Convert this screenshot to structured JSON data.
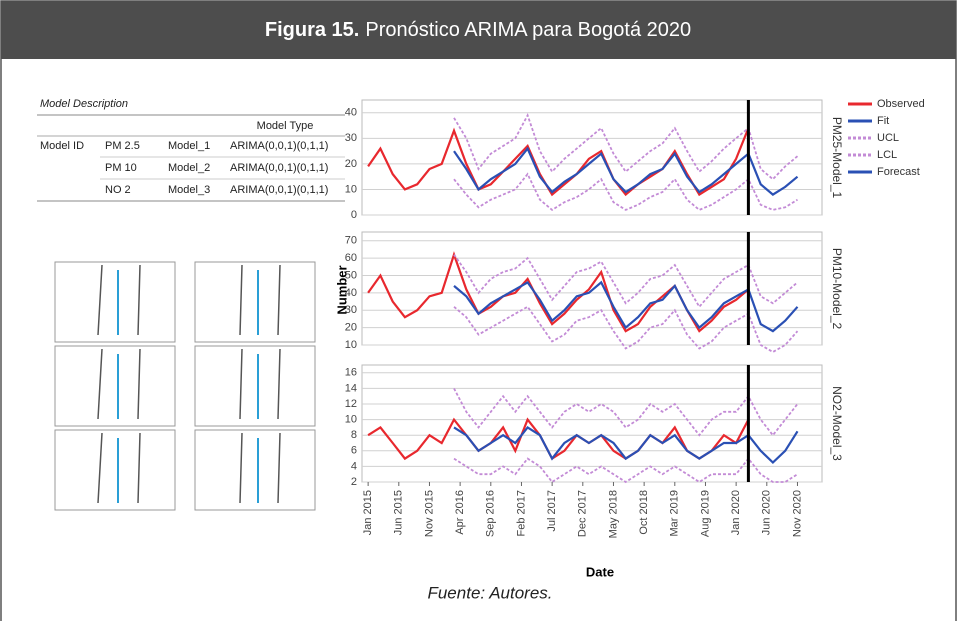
{
  "header": {
    "label": "Figura 15.",
    "title": "Pronóstico ARIMA para Bogotá 2020"
  },
  "caption": "Fuente: Autores.",
  "table": {
    "title": "Model Description",
    "column_header": "Model Type",
    "row_header": "Model ID",
    "rows": [
      [
        "PM 2.5",
        "Model_1",
        "ARIMA(0,0,1)(0,1,1)"
      ],
      [
        "PM 10",
        "Model_2",
        "ARIMA(0,0,1)(0,1,1)"
      ],
      [
        "NO 2",
        "Model_3",
        "ARIMA(0,0,1)(0,1,1)"
      ]
    ]
  },
  "chart_data": [
    {
      "type": "line",
      "panel_label": "PM25-Model_1",
      "legend": "right",
      "x": [
        "Jan 2015",
        "Mar 2015",
        "May 2015",
        "Jul 2015",
        "Sep 2015",
        "Nov 2015",
        "Jan 2016",
        "Mar 2016",
        "May 2016",
        "Jul 2016",
        "Sep 2016",
        "Nov 2016",
        "Jan 2017",
        "Mar 2017",
        "May 2017",
        "Jul 2017",
        "Sep 2017",
        "Nov 2017",
        "Jan 2018",
        "Mar 2018",
        "May 2018",
        "Jul 2018",
        "Sep 2018",
        "Nov 2018",
        "Jan 2019",
        "Mar 2019",
        "May 2019",
        "Jul 2019",
        "Sep 2019",
        "Nov 2019",
        "Jan 2020",
        "Mar 2020",
        "May 2020",
        "Jul 2020",
        "Sep 2020",
        "Nov 2020"
      ],
      "xlim": [
        "Dec 2014",
        "Mar 2021"
      ],
      "divider_x": "Mar 2020",
      "ylim": [
        0,
        45
      ],
      "yticks": [
        0,
        10,
        20,
        30,
        40
      ],
      "grid": true,
      "series": [
        {
          "name": "Observed",
          "color": "#e8282e",
          "style": "solid",
          "values": [
            19,
            26,
            16,
            10,
            12,
            18,
            20,
            33,
            20,
            10,
            12,
            17,
            22,
            27,
            16,
            8,
            12,
            16,
            22,
            25,
            14,
            8,
            12,
            15,
            18,
            25,
            16,
            8,
            11,
            14,
            22,
            34,
            null,
            null,
            null,
            null
          ]
        },
        {
          "name": "Fit",
          "color": "#2a50b4",
          "style": "solid",
          "values": [
            null,
            null,
            null,
            null,
            null,
            null,
            null,
            25,
            18,
            10,
            14,
            17,
            20,
            26,
            15,
            9,
            13,
            16,
            20,
            24,
            14,
            9,
            12,
            16,
            18,
            24,
            15,
            9,
            12,
            16,
            20,
            24,
            null,
            null,
            null,
            null
          ]
        },
        {
          "name": "UCL",
          "color": "#c38bd6",
          "style": "dotted",
          "values": [
            null,
            null,
            null,
            null,
            null,
            null,
            null,
            38,
            30,
            18,
            24,
            27,
            30,
            39,
            25,
            17,
            22,
            26,
            30,
            34,
            24,
            17,
            21,
            25,
            28,
            34,
            25,
            17,
            21,
            26,
            30,
            34,
            18,
            14,
            19,
            23
          ]
        },
        {
          "name": "LCL",
          "color": "#c38bd6",
          "style": "dotted",
          "values": [
            null,
            null,
            null,
            null,
            null,
            null,
            null,
            14,
            8,
            3,
            6,
            8,
            10,
            16,
            6,
            2,
            5,
            7,
            10,
            14,
            5,
            2,
            4,
            7,
            9,
            14,
            6,
            2,
            4,
            7,
            10,
            14,
            4,
            2,
            3,
            6
          ]
        },
        {
          "name": "Forecast",
          "color": "#2a50b4",
          "style": "solid",
          "values": [
            null,
            null,
            null,
            null,
            null,
            null,
            null,
            null,
            null,
            null,
            null,
            null,
            null,
            null,
            null,
            null,
            null,
            null,
            null,
            null,
            null,
            null,
            null,
            null,
            null,
            null,
            null,
            null,
            null,
            null,
            null,
            24,
            12,
            8,
            11,
            15
          ]
        }
      ]
    },
    {
      "type": "line",
      "panel_label": "PM10-Model_2",
      "ylabel": "Number",
      "x": [
        "Jan 2015",
        "Mar 2015",
        "May 2015",
        "Jul 2015",
        "Sep 2015",
        "Nov 2015",
        "Jan 2016",
        "Mar 2016",
        "May 2016",
        "Jul 2016",
        "Sep 2016",
        "Nov 2016",
        "Jan 2017",
        "Mar 2017",
        "May 2017",
        "Jul 2017",
        "Sep 2017",
        "Nov 2017",
        "Jan 2018",
        "Mar 2018",
        "May 2018",
        "Jul 2018",
        "Sep 2018",
        "Nov 2018",
        "Jan 2019",
        "Mar 2019",
        "May 2019",
        "Jul 2019",
        "Sep 2019",
        "Nov 2019",
        "Jan 2020",
        "Mar 2020",
        "May 2020",
        "Jul 2020",
        "Sep 2020",
        "Nov 2020"
      ],
      "xlim": [
        "Dec 2014",
        "Mar 2021"
      ],
      "divider_x": "Mar 2020",
      "ylim": [
        10,
        75
      ],
      "yticks": [
        10,
        20,
        30,
        40,
        50,
        60,
        70
      ],
      "grid": true,
      "series": [
        {
          "color": "#e8282e",
          "style": "solid",
          "values": [
            40,
            50,
            35,
            26,
            30,
            38,
            40,
            62,
            42,
            28,
            32,
            38,
            40,
            48,
            34,
            22,
            28,
            36,
            42,
            52,
            30,
            18,
            22,
            32,
            38,
            44,
            30,
            18,
            24,
            32,
            36,
            42,
            null,
            null,
            null,
            null
          ]
        },
        {
          "color": "#2a50b4",
          "style": "solid",
          "values": [
            null,
            null,
            null,
            null,
            null,
            null,
            null,
            44,
            38,
            28,
            34,
            38,
            42,
            46,
            36,
            24,
            30,
            38,
            40,
            46,
            32,
            20,
            26,
            34,
            36,
            44,
            30,
            20,
            26,
            34,
            38,
            42,
            null,
            null,
            null,
            null
          ]
        },
        {
          "color": "#c38bd6",
          "style": "dotted",
          "values": [
            null,
            null,
            null,
            null,
            null,
            null,
            null,
            62,
            52,
            40,
            48,
            52,
            54,
            60,
            48,
            36,
            44,
            52,
            54,
            58,
            46,
            34,
            40,
            48,
            50,
            56,
            44,
            32,
            40,
            48,
            52,
            56,
            38,
            34,
            40,
            46
          ]
        },
        {
          "color": "#c38bd6",
          "style": "dotted",
          "values": [
            null,
            null,
            null,
            null,
            null,
            null,
            null,
            32,
            26,
            16,
            20,
            24,
            28,
            32,
            22,
            12,
            16,
            24,
            26,
            30,
            18,
            8,
            12,
            20,
            22,
            30,
            16,
            8,
            12,
            20,
            24,
            28,
            10,
            6,
            10,
            18
          ]
        },
        {
          "color": "#2a50b4",
          "style": "solid",
          "values": [
            null,
            null,
            null,
            null,
            null,
            null,
            null,
            null,
            null,
            null,
            null,
            null,
            null,
            null,
            null,
            null,
            null,
            null,
            null,
            null,
            null,
            null,
            null,
            null,
            null,
            null,
            null,
            null,
            null,
            null,
            null,
            42,
            22,
            18,
            24,
            32
          ]
        }
      ]
    },
    {
      "type": "line",
      "panel_label": "NO2-Model_3",
      "xlabel": "Date",
      "x": [
        "Jan 2015",
        "Mar 2015",
        "May 2015",
        "Jul 2015",
        "Sep 2015",
        "Nov 2015",
        "Jan 2016",
        "Mar 2016",
        "May 2016",
        "Jul 2016",
        "Sep 2016",
        "Nov 2016",
        "Jan 2017",
        "Mar 2017",
        "May 2017",
        "Jul 2017",
        "Sep 2017",
        "Nov 2017",
        "Jan 2018",
        "Mar 2018",
        "May 2018",
        "Jul 2018",
        "Sep 2018",
        "Nov 2018",
        "Jan 2019",
        "Mar 2019",
        "May 2019",
        "Jul 2019",
        "Sep 2019",
        "Nov 2019",
        "Jan 2020",
        "Mar 2020",
        "May 2020",
        "Jul 2020",
        "Sep 2020",
        "Nov 2020"
      ],
      "xlim": [
        "Dec 2014",
        "Mar 2021"
      ],
      "divider_x": "Mar 2020",
      "xticks": [
        "Jan 2015",
        "Jun 2015",
        "Nov 2015",
        "Apr 2016",
        "Sep 2016",
        "Feb 2017",
        "Jul 2017",
        "Dec 2017",
        "May 2018",
        "Oct 2018",
        "Mar 2019",
        "Aug 2019",
        "Jan 2020",
        "Jun 2020",
        "Nov 2020"
      ],
      "ylim": [
        2,
        17
      ],
      "yticks": [
        2,
        4,
        6,
        8,
        10,
        12,
        14,
        16
      ],
      "grid": true,
      "series": [
        {
          "color": "#e8282e",
          "style": "solid",
          "values": [
            8,
            9,
            7,
            5,
            6,
            8,
            7,
            10,
            8,
            6,
            7,
            9,
            6,
            10,
            8,
            5,
            6,
            8,
            7,
            8,
            6,
            5,
            6,
            8,
            7,
            9,
            6,
            5,
            6,
            8,
            7,
            10,
            null,
            null,
            null,
            null
          ]
        },
        {
          "color": "#2a50b4",
          "style": "solid",
          "values": [
            null,
            null,
            null,
            null,
            null,
            null,
            null,
            9,
            8,
            6,
            7,
            8,
            7,
            9,
            8,
            5,
            7,
            8,
            7,
            8,
            7,
            5,
            6,
            8,
            7,
            8,
            6,
            5,
            6,
            7,
            7,
            8,
            null,
            null,
            null,
            null
          ]
        },
        {
          "color": "#c38bd6",
          "style": "dotted",
          "values": [
            null,
            null,
            null,
            null,
            null,
            null,
            null,
            14,
            11,
            9,
            11,
            13,
            11,
            13,
            11,
            9,
            11,
            12,
            11,
            12,
            11,
            9,
            10,
            12,
            11,
            12,
            10,
            8,
            10,
            11,
            11,
            13,
            10,
            8,
            10,
            12
          ]
        },
        {
          "color": "#c38bd6",
          "style": "dotted",
          "values": [
            null,
            null,
            null,
            null,
            null,
            null,
            null,
            5,
            4,
            3,
            3,
            4,
            3,
            5,
            4,
            2,
            3,
            4,
            3,
            4,
            3,
            2,
            3,
            4,
            3,
            4,
            3,
            2,
            3,
            3,
            3,
            5,
            3,
            2,
            2,
            3
          ]
        },
        {
          "color": "#2a50b4",
          "style": "solid",
          "values": [
            null,
            null,
            null,
            null,
            null,
            null,
            null,
            null,
            null,
            null,
            null,
            null,
            null,
            null,
            null,
            null,
            null,
            null,
            null,
            null,
            null,
            null,
            null,
            null,
            null,
            null,
            null,
            null,
            null,
            null,
            null,
            8,
            6,
            4.5,
            6,
            8.5
          ]
        }
      ]
    }
  ]
}
